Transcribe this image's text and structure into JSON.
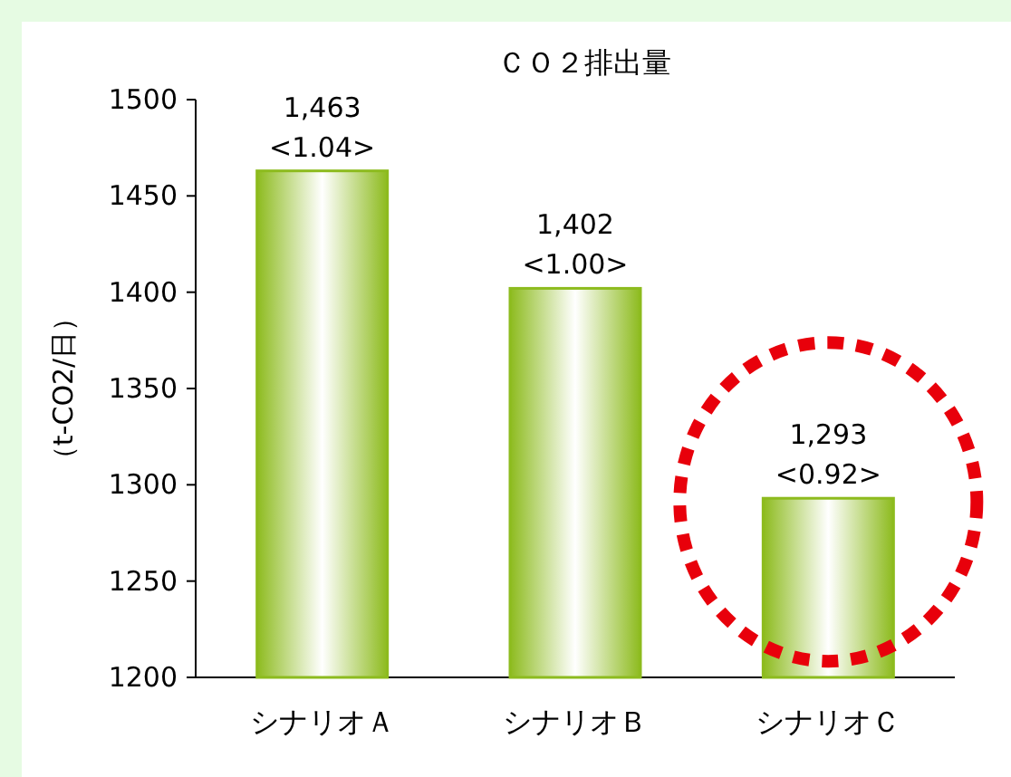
{
  "chart_data": {
    "type": "bar",
    "title": "ＣＯ２排出量",
    "ylabel": "（t-CO2/日）",
    "categories": [
      "シナリオＡ",
      "シナリオＢ",
      "シナリオＣ"
    ],
    "values": [
      1463,
      1402,
      1293
    ],
    "value_labels": [
      "1,463\n<1.04>",
      "1,402\n<1.00>",
      "1,293\n<0.92>"
    ],
    "color": "#8dbb1e",
    "ylim": [
      1200,
      1500
    ],
    "yticks": [
      1200,
      1250,
      1300,
      1350,
      1400,
      1450,
      1500
    ],
    "grid": false
  }
}
